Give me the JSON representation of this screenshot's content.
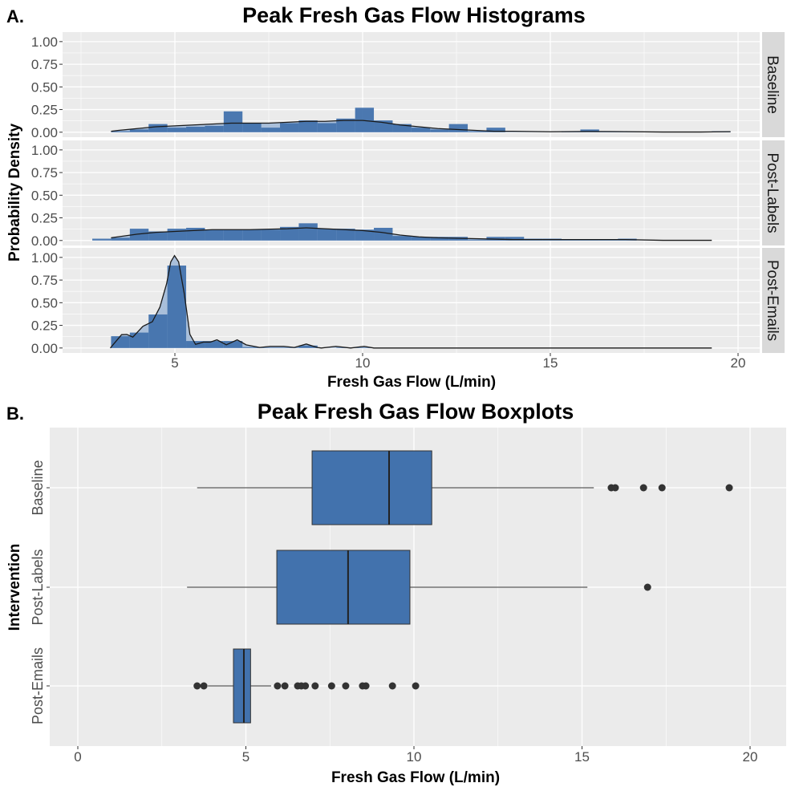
{
  "colors": {
    "panel_bg": "#ebebeb",
    "grid": "#ffffff",
    "strip_bg": "#d9d9d9",
    "bar": "#4272ad",
    "density_fill": "#a9bfda",
    "line": "#1a1a1a",
    "outlier": "#333333"
  },
  "chart_data": [
    {
      "label": "A.",
      "title": "Peak Fresh Gas Flow Histograms",
      "type": "bar",
      "xlabel": "Fresh Gas Flow (L/min)",
      "ylabel": "Probability Density",
      "xticks": [
        5,
        10,
        15,
        20
      ],
      "xtick_labels": [
        "5",
        "10",
        "15",
        "20"
      ],
      "yticks": [
        0,
        0.25,
        0.5,
        0.75,
        1.0
      ],
      "ytick_labels": [
        "0.00",
        "0.25",
        "0.50",
        "0.75",
        "1.00"
      ],
      "xlim": [
        1.9,
        20.6
      ],
      "ylim": [
        -0.055,
        1.105
      ],
      "grid": true,
      "bin_width": 0.5,
      "bin_centers_start": 3.05,
      "facets": [
        {
          "name": "Baseline",
          "values": [
            0,
            0.01,
            0.03,
            0.09,
            0.05,
            0.06,
            0.07,
            0.23,
            0.1,
            0.05,
            0.1,
            0.13,
            0.1,
            0.15,
            0.27,
            0.13,
            0.09,
            0.05,
            0.03,
            0.09,
            0.01,
            0.05,
            0,
            0,
            0,
            0.005,
            0.03,
            0.005,
            0.005,
            0.005,
            0,
            0,
            0,
            0.01
          ],
          "density": [
            [
              3.3,
              0.01
            ],
            [
              3.5,
              0.02
            ],
            [
              4.0,
              0.04
            ],
            [
              4.5,
              0.06
            ],
            [
              5.0,
              0.07
            ],
            [
              5.5,
              0.08
            ],
            [
              6.0,
              0.09
            ],
            [
              6.5,
              0.1
            ],
            [
              7.0,
              0.1
            ],
            [
              7.5,
              0.1
            ],
            [
              8.0,
              0.11
            ],
            [
              8.5,
              0.12
            ],
            [
              9.0,
              0.12
            ],
            [
              9.5,
              0.13
            ],
            [
              10.0,
              0.13
            ],
            [
              10.5,
              0.11
            ],
            [
              11.0,
              0.08
            ],
            [
              11.5,
              0.06
            ],
            [
              12.0,
              0.04
            ],
            [
              12.5,
              0.03
            ],
            [
              13.0,
              0.02
            ],
            [
              13.5,
              0.01
            ],
            [
              14.0,
              0.01
            ],
            [
              15.0,
              0.005
            ],
            [
              16.0,
              0.008
            ],
            [
              17.0,
              0.006
            ],
            [
              18.0,
              0.002
            ],
            [
              19.0,
              0.002
            ],
            [
              19.8,
              0.006
            ]
          ]
        },
        {
          "name": "Post-Labels",
          "values": [
            0.02,
            0.03,
            0.13,
            0.1,
            0.13,
            0.14,
            0.12,
            0.12,
            0.12,
            0.12,
            0.15,
            0.19,
            0.13,
            0.13,
            0.12,
            0.14,
            0.05,
            0.04,
            0.04,
            0.04,
            0.01,
            0.04,
            0.04,
            0.02,
            0.02,
            0.01,
            0.01,
            0.01,
            0.02,
            0,
            0,
            0,
            0,
            0
          ],
          "density": [
            [
              3.3,
              0.03
            ],
            [
              4.0,
              0.07
            ],
            [
              4.5,
              0.09
            ],
            [
              5.0,
              0.1
            ],
            [
              5.5,
              0.11
            ],
            [
              6.0,
              0.12
            ],
            [
              7.0,
              0.12
            ],
            [
              8.0,
              0.13
            ],
            [
              8.5,
              0.14
            ],
            [
              9.0,
              0.13
            ],
            [
              9.5,
              0.12
            ],
            [
              10.0,
              0.11
            ],
            [
              10.5,
              0.09
            ],
            [
              11.0,
              0.06
            ],
            [
              11.5,
              0.04
            ],
            [
              12.0,
              0.03
            ],
            [
              13.0,
              0.02
            ],
            [
              14.0,
              0.01
            ],
            [
              15.0,
              0.01
            ],
            [
              16.0,
              0.01
            ],
            [
              17.0,
              0.01
            ],
            [
              18.0,
              0.002
            ],
            [
              19.3,
              0.002
            ]
          ]
        },
        {
          "name": "Post-Emails",
          "values": [
            0,
            0.13,
            0.17,
            0.37,
            0.91,
            0.077,
            0.077,
            0.077,
            0.01,
            0.005,
            0.005,
            0.027,
            0,
            0.005,
            0.005,
            0,
            0,
            0,
            0,
            0,
            0,
            0,
            0,
            0,
            0,
            0,
            0,
            0,
            0,
            0,
            0,
            0,
            0,
            0
          ],
          "density": [
            [
              3.28,
              0
            ],
            [
              3.58,
              0.147
            ],
            [
              3.72,
              0.15
            ],
            [
              3.88,
              0.12
            ],
            [
              4.15,
              0.24
            ],
            [
              4.4,
              0.29
            ],
            [
              4.6,
              0.45
            ],
            [
              4.78,
              0.71
            ],
            [
              4.89,
              0.95
            ],
            [
              4.99,
              1.02
            ],
            [
              5.1,
              0.95
            ],
            [
              5.25,
              0.6
            ],
            [
              5.4,
              0.15
            ],
            [
              5.55,
              0.04
            ],
            [
              5.76,
              0.065
            ],
            [
              5.94,
              0.065
            ],
            [
              6.12,
              0.09
            ],
            [
              6.37,
              0.035
            ],
            [
              6.66,
              0.09
            ],
            [
              6.9,
              0.035
            ],
            [
              7.26,
              0.006
            ],
            [
              7.54,
              0.018
            ],
            [
              7.9,
              0.018
            ],
            [
              8.18,
              0.006
            ],
            [
              8.5,
              0.044
            ],
            [
              8.79,
              0.006
            ],
            [
              8.9,
              0
            ],
            [
              9.29,
              0.018
            ],
            [
              9.68,
              0
            ],
            [
              10.04,
              0.018
            ],
            [
              10.3,
              0
            ],
            [
              19.3,
              0
            ]
          ]
        }
      ]
    },
    {
      "label": "B.",
      "title": "Peak Fresh Gas Flow Boxplots",
      "type": "boxplot",
      "xlabel": "Fresh Gas Flow (L/min)",
      "ylabel": "Intervention",
      "xticks": [
        0,
        5,
        10,
        15,
        20
      ],
      "xtick_labels": [
        "0",
        "5",
        "10",
        "15",
        "20"
      ],
      "xlim": [
        -0.8,
        21.0
      ],
      "grid": true,
      "series": [
        {
          "name": "Baseline",
          "whisker_low": 3.55,
          "q1": 6.97,
          "median": 9.26,
          "q3": 10.53,
          "whisker_high": 15.35,
          "outliers": [
            15.87,
            15.99,
            16.83,
            17.38,
            19.38
          ]
        },
        {
          "name": "Post-Labels",
          "whisker_low": 3.25,
          "q1": 5.92,
          "median": 8.04,
          "q3": 9.88,
          "whisker_high": 15.16,
          "outliers": [
            16.95
          ]
        },
        {
          "name": "Post-Emails",
          "whisker_low": 3.87,
          "q1": 4.63,
          "median": 4.94,
          "q3": 5.14,
          "whisker_high": 5.75,
          "outliers": [
            3.55,
            3.75,
            5.94,
            6.16,
            6.54,
            6.65,
            6.77,
            7.06,
            7.55,
            7.97,
            8.47,
            8.57,
            9.36,
            10.05
          ]
        }
      ]
    }
  ]
}
